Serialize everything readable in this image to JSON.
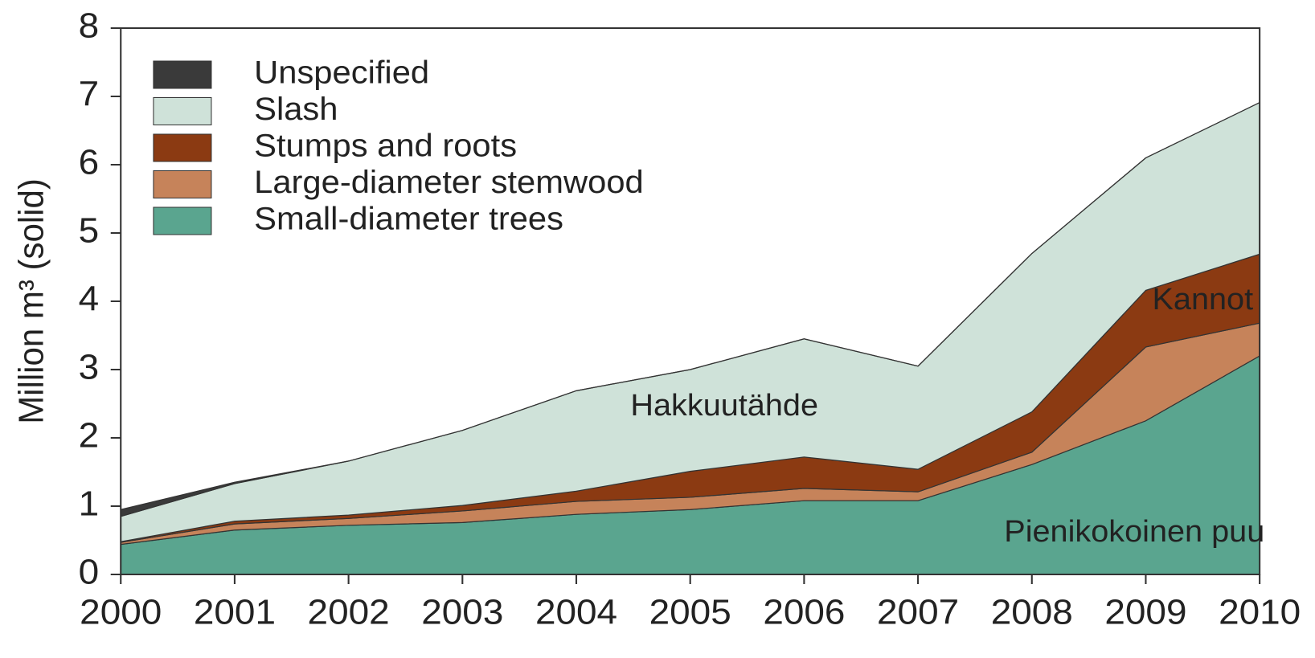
{
  "chart_data": {
    "type": "stacked_area",
    "y_label": "Million m³  (solid)",
    "x": [
      2000,
      2001,
      2002,
      2003,
      2004,
      2005,
      2006,
      2007,
      2008,
      2009,
      2010
    ],
    "xlim": [
      2000,
      2010
    ],
    "xticks": [
      2000,
      2001,
      2002,
      2003,
      2004,
      2005,
      2006,
      2007,
      2008,
      2009,
      2010
    ],
    "ylim": [
      0,
      8
    ],
    "yticks": [
      0,
      1,
      2,
      3,
      4,
      5,
      6,
      7,
      8
    ],
    "legend": "upper left",
    "series": [
      {
        "name": "Small-diameter trees",
        "color": "#5aa58f",
        "values": [
          0.44,
          0.65,
          0.72,
          0.76,
          0.88,
          0.95,
          1.08,
          1.08,
          1.61,
          2.25,
          3.2
        ]
      },
      {
        "name": "Large-diameter stemwood",
        "color": "#c6835a",
        "values": [
          0.03,
          0.09,
          0.1,
          0.17,
          0.19,
          0.18,
          0.18,
          0.13,
          0.18,
          1.08,
          0.48
        ]
      },
      {
        "name": "Stumps and roots",
        "color": "#8b3a12",
        "values": [
          0.01,
          0.04,
          0.05,
          0.08,
          0.15,
          0.38,
          0.46,
          0.33,
          0.59,
          0.83,
          1.01
        ]
      },
      {
        "name": "Slash",
        "color": "#cfe2d9",
        "values": [
          0.37,
          0.55,
          0.79,
          1.1,
          1.47,
          1.49,
          1.73,
          1.51,
          2.32,
          1.94,
          2.22
        ]
      },
      {
        "name": "Unspecified",
        "color": "#3a3a3a",
        "values": [
          0.1,
          0.02,
          0,
          0,
          0,
          0,
          0,
          0,
          0,
          0,
          0
        ]
      }
    ],
    "annotations": [
      {
        "text": "Hakkuutähde",
        "x": 2005.3,
        "y": 2.45
      },
      {
        "text": "Kannot",
        "x": 2009.5,
        "y": 4.0
      },
      {
        "text": "Pienikokoinen puu",
        "x": 2008.9,
        "y": 0.6
      }
    ]
  }
}
